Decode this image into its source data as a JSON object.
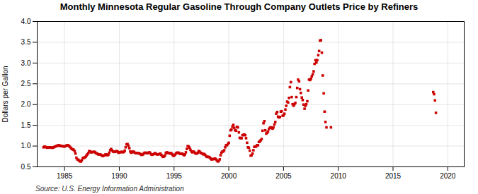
{
  "chart_data": {
    "type": "scatter",
    "title": "Monthly Minnesota Regular Gasoline Through Company Outlets Price by Refiners",
    "ylabel": "Dollars per Gallon",
    "source": "Source: U.S. Energy Information Administration",
    "color": "#cc0000",
    "marker": "square",
    "grid": true,
    "xlim": [
      1982.5,
      2021.5
    ],
    "ylim": [
      0.5,
      4.0
    ],
    "xticks": [
      1985,
      1990,
      1995,
      2000,
      2005,
      2010,
      2015,
      2020
    ],
    "yticks": [
      0.5,
      {
        "value": 1.0,
        "label": "1.0"
      },
      1.5,
      {
        "value": 2.0,
        "label": "2.0"
      },
      2.5,
      {
        "value": 3.0,
        "label": "3.0"
      },
      3.5,
      {
        "value": 4.0,
        "label": "4.0"
      }
    ],
    "x": [
      1983.08,
      1983.17,
      1983.25,
      1983.33,
      1983.42,
      1983.5,
      1983.58,
      1983.67,
      1983.75,
      1983.83,
      1983.92,
      1984.0,
      1984.08,
      1984.17,
      1984.25,
      1984.33,
      1984.42,
      1984.5,
      1984.58,
      1984.67,
      1984.75,
      1984.83,
      1984.92,
      1985.0,
      1985.08,
      1985.17,
      1985.25,
      1985.33,
      1985.42,
      1985.5,
      1985.58,
      1985.67,
      1985.75,
      1985.83,
      1985.92,
      1986.0,
      1986.08,
      1986.17,
      1986.25,
      1986.33,
      1986.42,
      1986.5,
      1986.58,
      1986.67,
      1986.75,
      1986.83,
      1986.92,
      1987.0,
      1987.08,
      1987.17,
      1987.25,
      1987.33,
      1987.42,
      1987.5,
      1987.58,
      1987.67,
      1987.75,
      1987.83,
      1987.92,
      1988.0,
      1988.08,
      1988.17,
      1988.25,
      1988.33,
      1988.42,
      1988.5,
      1988.58,
      1988.67,
      1988.75,
      1988.83,
      1988.92,
      1989.0,
      1989.08,
      1989.17,
      1989.25,
      1989.33,
      1989.42,
      1989.5,
      1989.58,
      1989.67,
      1989.75,
      1989.83,
      1989.92,
      1990.0,
      1990.08,
      1990.17,
      1990.25,
      1990.33,
      1990.42,
      1990.5,
      1990.58,
      1990.67,
      1990.75,
      1990.83,
      1990.92,
      1991.0,
      1991.08,
      1991.17,
      1991.25,
      1991.33,
      1991.42,
      1991.5,
      1991.58,
      1991.67,
      1991.75,
      1991.83,
      1991.92,
      1992.0,
      1992.08,
      1992.17,
      1992.25,
      1992.33,
      1992.42,
      1992.5,
      1992.58,
      1992.67,
      1992.75,
      1992.83,
      1992.92,
      1993.0,
      1993.08,
      1993.17,
      1993.25,
      1993.33,
      1993.42,
      1993.5,
      1993.58,
      1993.67,
      1993.75,
      1993.83,
      1993.92,
      1994.0,
      1994.08,
      1994.17,
      1994.25,
      1994.33,
      1994.42,
      1994.5,
      1994.58,
      1994.67,
      1994.75,
      1994.83,
      1994.92,
      1995.0,
      1995.08,
      1995.17,
      1995.25,
      1995.33,
      1995.42,
      1995.5,
      1995.58,
      1995.67,
      1995.75,
      1995.83,
      1995.92,
      1996.0,
      1996.08,
      1996.17,
      1996.25,
      1996.33,
      1996.42,
      1996.5,
      1996.58,
      1996.67,
      1996.75,
      1996.83,
      1996.92,
      1997.0,
      1997.08,
      1997.17,
      1997.25,
      1997.33,
      1997.42,
      1997.5,
      1997.58,
      1997.67,
      1997.75,
      1997.83,
      1997.92,
      1998.0,
      1998.08,
      1998.17,
      1998.25,
      1998.33,
      1998.42,
      1998.5,
      1998.58,
      1998.67,
      1998.75,
      1998.83,
      1998.92,
      1999.0,
      1999.08,
      1999.17,
      1999.25,
      1999.33,
      1999.42,
      1999.5,
      1999.58,
      1999.67,
      1999.75,
      1999.83,
      1999.92,
      2000.0,
      2000.08,
      2000.17,
      2000.25,
      2000.33,
      2000.42,
      2000.5,
      2000.58,
      2000.67,
      2000.75,
      2000.83,
      2000.92,
      2001.0,
      2001.08,
      2001.17,
      2001.25,
      2001.33,
      2001.42,
      2001.5,
      2001.58,
      2001.67,
      2001.75,
      2001.83,
      2001.92,
      2002.0,
      2002.08,
      2002.17,
      2002.25,
      2002.33,
      2002.42,
      2002.5,
      2002.58,
      2002.67,
      2002.75,
      2002.83,
      2002.92,
      2003.0,
      2003.08,
      2003.17,
      2003.25,
      2003.33,
      2003.42,
      2003.5,
      2003.58,
      2003.67,
      2003.75,
      2003.83,
      2003.92,
      2004.0,
      2004.08,
      2004.17,
      2004.25,
      2004.33,
      2004.42,
      2004.5,
      2004.58,
      2004.67,
      2004.75,
      2004.83,
      2004.92,
      2005.0,
      2005.08,
      2005.17,
      2005.25,
      2005.33,
      2005.42,
      2005.5,
      2005.58,
      2005.67,
      2005.75,
      2005.83,
      2005.92,
      2006.0,
      2006.08,
      2006.17,
      2006.25,
      2006.33,
      2006.42,
      2006.5,
      2006.58,
      2006.67,
      2006.75,
      2006.83,
      2006.92,
      2007.0,
      2007.08,
      2007.17,
      2007.25,
      2007.33,
      2007.42,
      2007.5,
      2007.58,
      2007.67,
      2007.75,
      2007.83,
      2007.92,
      2008.0,
      2008.08,
      2008.17,
      2008.25,
      2008.33,
      2008.42,
      2008.5,
      2008.58,
      2008.67,
      2008.75,
      2008.83,
      2008.92,
      2009.33,
      2018.67,
      2018.75,
      2018.83,
      2018.92
    ],
    "values": [
      0.97,
      0.99,
      0.98,
      0.97,
      0.96,
      0.97,
      0.97,
      0.97,
      0.97,
      0.96,
      0.96,
      0.97,
      0.98,
      0.99,
      1.0,
      1.01,
      1.01,
      1.02,
      1.01,
      1.0,
      1.0,
      1.0,
      0.99,
      0.99,
      1.0,
      1.01,
      1.02,
      1.02,
      1.0,
      0.98,
      0.95,
      0.93,
      0.92,
      0.91,
      0.88,
      0.82,
      0.72,
      0.68,
      0.67,
      0.65,
      0.63,
      0.63,
      0.66,
      0.71,
      0.72,
      0.72,
      0.74,
      0.77,
      0.8,
      0.83,
      0.88,
      0.87,
      0.85,
      0.85,
      0.86,
      0.86,
      0.86,
      0.84,
      0.82,
      0.82,
      0.8,
      0.8,
      0.8,
      0.79,
      0.77,
      0.76,
      0.77,
      0.78,
      0.8,
      0.8,
      0.78,
      0.79,
      0.84,
      0.9,
      0.93,
      0.9,
      0.87,
      0.86,
      0.86,
      0.87,
      0.88,
      0.87,
      0.84,
      0.85,
      0.85,
      0.86,
      0.86,
      0.85,
      0.86,
      0.89,
      0.97,
      1.04,
      1.05,
      1.01,
      0.95,
      0.87,
      0.84,
      0.85,
      0.87,
      0.86,
      0.84,
      0.83,
      0.83,
      0.83,
      0.83,
      0.82,
      0.81,
      0.79,
      0.79,
      0.8,
      0.83,
      0.84,
      0.84,
      0.83,
      0.83,
      0.84,
      0.85,
      0.83,
      0.8,
      0.79,
      0.8,
      0.81,
      0.83,
      0.82,
      0.8,
      0.8,
      0.8,
      0.81,
      0.82,
      0.79,
      0.76,
      0.74,
      0.75,
      0.77,
      0.83,
      0.85,
      0.84,
      0.83,
      0.83,
      0.82,
      0.83,
      0.8,
      0.77,
      0.77,
      0.79,
      0.82,
      0.84,
      0.84,
      0.84,
      0.82,
      0.81,
      0.81,
      0.82,
      0.8,
      0.78,
      0.8,
      0.85,
      0.93,
      1.0,
      0.99,
      0.96,
      0.91,
      0.87,
      0.85,
      0.87,
      0.86,
      0.83,
      0.82,
      0.82,
      0.84,
      0.88,
      0.87,
      0.84,
      0.83,
      0.82,
      0.8,
      0.81,
      0.79,
      0.76,
      0.74,
      0.74,
      0.74,
      0.73,
      0.7,
      0.68,
      0.68,
      0.69,
      0.69,
      0.7,
      0.68,
      0.65,
      0.63,
      0.64,
      0.68,
      0.78,
      0.84,
      0.87,
      0.87,
      0.9,
      0.97,
      1.02,
      1.02,
      1.05,
      1.08,
      1.25,
      1.38,
      1.4,
      1.47,
      1.51,
      1.44,
      1.38,
      1.37,
      1.46,
      1.45,
      1.33,
      1.2,
      1.19,
      1.19,
      1.26,
      1.27,
      1.28,
      1.26,
      1.19,
      1.08,
      0.97,
      0.96,
      0.89,
      0.77,
      0.78,
      0.82,
      0.9,
      0.98,
      0.99,
      0.99,
      1.02,
      1.02,
      1.1,
      1.11,
      1.14,
      1.17,
      1.37,
      1.55,
      1.6,
      1.38,
      1.3,
      1.32,
      1.35,
      1.41,
      1.44,
      1.45,
      1.44,
      1.42,
      1.45,
      1.52,
      1.58,
      1.78,
      1.82,
      1.71,
      1.69,
      1.7,
      1.83,
      1.84,
      1.73,
      1.74,
      1.78,
      1.88,
      1.97,
      2.07,
      2.05,
      2.16,
      2.42,
      2.54,
      2.18,
      2.01,
      1.97,
      2.01,
      2.04,
      2.18,
      2.4,
      2.6,
      2.56,
      2.37,
      2.28,
      2.17,
      2.11,
      2.0,
      1.9,
      1.97,
      2.01,
      2.08,
      2.34,
      2.6,
      2.59,
      2.62,
      2.68,
      2.73,
      2.8,
      2.98,
      3.07,
      3.01,
      3.07,
      3.19,
      3.29,
      3.54,
      3.55,
      3.25,
      2.7,
      2.27,
      1.83,
      1.58,
      1.45,
      1.45,
      2.3,
      2.25,
      2.1,
      1.8
    ]
  }
}
